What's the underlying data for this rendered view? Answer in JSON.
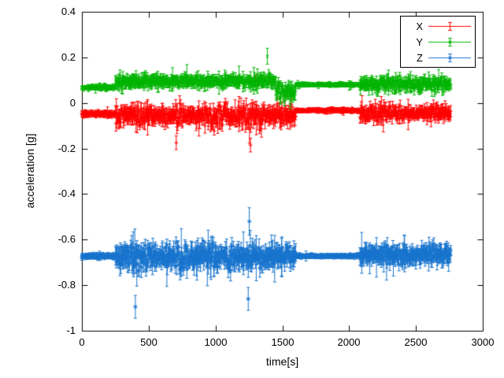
{
  "chart_data": {
    "type": "scatter",
    "style": "points-with-yerrorbars",
    "title": "",
    "xlabel": "time[s]",
    "ylabel": "acceleration [g]",
    "xlim": [
      0,
      3000
    ],
    "ylim": [
      -1,
      0.4
    ],
    "xtick_values": [
      0,
      500,
      1000,
      1500,
      2000,
      2500,
      3000
    ],
    "xtick_labels": [
      "0",
      "500",
      "1000",
      "1500",
      "2000",
      "2500",
      "3000"
    ],
    "ytick_values": [
      -1,
      -0.8,
      -0.6,
      -0.4,
      -0.2,
      0,
      0.2,
      0.4
    ],
    "ytick_labels": [
      "-1",
      "-0.8",
      "-0.6",
      "-0.4",
      "-0.2",
      "0",
      "0.2",
      "0.4"
    ],
    "grid": false,
    "legend_position": "top-right",
    "time_range": [
      0,
      2760
    ],
    "sample_step": 3,
    "series": [
      {
        "name": "X",
        "color": "#ff0000",
        "marker": "plus",
        "seed": 41,
        "description": "X-axis acceleration, mean about -0.05 g; quiet 0-250s and 1600-2080s, noisy bursts 250-1600s and 2080-2760s with excursions to about -0.2 g",
        "segments": [
          [
            0,
            250,
            -0.048,
            0.012,
            0.01
          ],
          [
            250,
            1600,
            -0.055,
            0.05,
            0.027
          ],
          [
            1600,
            2080,
            -0.033,
            0.008,
            0.008
          ],
          [
            2080,
            2760,
            -0.045,
            0.04,
            0.022
          ]
        ],
        "spikes": [
          {
            "t": 1300,
            "v": 0.1,
            "e": 0.02
          },
          {
            "t": 1262,
            "v": -0.185,
            "e": 0.03
          },
          {
            "t": 706,
            "v": -0.175,
            "e": 0.03
          }
        ]
      },
      {
        "name": "Y",
        "color": "#00b400",
        "marker": "cross",
        "seed": 77,
        "description": "Y-axis acceleration, mean about +0.08 g; quiet 0-250s and 1600-2080s, noisy 250-1600s and 2080-2760s, spike to about +0.21 g near 1390s",
        "segments": [
          [
            0,
            250,
            0.068,
            0.01,
            0.008
          ],
          [
            250,
            1450,
            0.095,
            0.024,
            0.02
          ],
          [
            1450,
            1600,
            0.05,
            0.04,
            0.025
          ],
          [
            1600,
            2080,
            0.08,
            0.007,
            0.007
          ],
          [
            2080,
            2760,
            0.082,
            0.032,
            0.02
          ]
        ],
        "spikes": [
          {
            "t": 1388,
            "v": 0.205,
            "e": 0.035
          },
          {
            "t": 1560,
            "v": -0.005,
            "e": 0.02
          }
        ]
      },
      {
        "name": "Z",
        "color": "#1874cd",
        "marker": "star",
        "seed": 13,
        "description": "Z-axis acceleration, mean about -0.67 g; quiet 0-250s and 1600-2080s, noisy 250-1600s and 2080-2760s spanning about -0.55 to -0.9 g",
        "segments": [
          [
            0,
            250,
            -0.672,
            0.01,
            0.01
          ],
          [
            250,
            1600,
            -0.675,
            0.055,
            0.035
          ],
          [
            1600,
            2080,
            -0.672,
            0.007,
            0.008
          ],
          [
            2080,
            2760,
            -0.668,
            0.045,
            0.03
          ]
        ],
        "spikes": [
          {
            "t": 400,
            "v": -0.895,
            "e": 0.05
          },
          {
            "t": 1253,
            "v": -0.52,
            "e": 0.06
          },
          {
            "t": 1245,
            "v": -0.86,
            "e": 0.05
          }
        ]
      }
    ]
  }
}
